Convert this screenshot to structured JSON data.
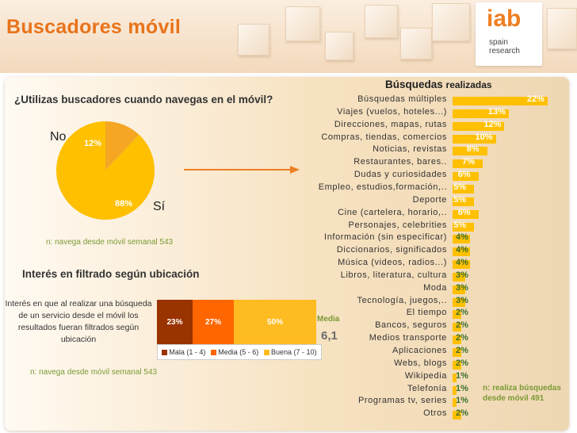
{
  "header": {
    "title": "Buscadores móvil",
    "logo": {
      "main": "iab",
      "sub1": "spain",
      "sub2": "research"
    }
  },
  "pie_section": {
    "question": "¿Utilizas buscadores cuando navegas en el móvil?",
    "label_no": "No",
    "label_si": "Sí",
    "note": "n: navega desde móvil semanal 543"
  },
  "interest_section": {
    "title": "Interés en filtrado según ubicación",
    "description": "Interés en que al realizar una búsqueda de un servicio desde el móvil  los resultados fueran filtrados según ubicación",
    "note": "n: navega desde móvil semanal 543",
    "media_label": "Media",
    "media_value": "6,1"
  },
  "bar_section": {
    "title_bold": "Búsquedas",
    "title_rest": "realizadas",
    "note": "n: realiza búsquedas desde móvil 491"
  },
  "colors": {
    "orange_title": "#e8731a",
    "gold": "#ffc000",
    "pie_small": "#f5a623",
    "pie_big": "#ffc000",
    "mala": "#993300",
    "media": "#ff6600",
    "buena": "#ffbb22",
    "note_green": "#7a9a35"
  },
  "chart_data": [
    {
      "type": "pie",
      "title": "¿Utilizas buscadores cuando navegas en el móvil?",
      "slices": [
        {
          "name": "No",
          "value": 12,
          "label": "12%"
        },
        {
          "name": "Sí",
          "value": 88,
          "label": "88%"
        }
      ]
    },
    {
      "type": "bar",
      "orientation": "horizontal-stacked",
      "title": "Interés en filtrado según ubicación",
      "series": [
        {
          "name": "Mala (1 - 4)",
          "value": 23,
          "label": "23%"
        },
        {
          "name": "Media (5 - 6)",
          "value": 27,
          "label": "27%"
        },
        {
          "name": "Buena (7 - 10)",
          "value": 50,
          "label": "50%"
        }
      ]
    },
    {
      "type": "bar",
      "orientation": "horizontal",
      "title": "Búsquedas realizadas",
      "categories": [
        "Búsquedas múltiples",
        "Viajes (vuelos, hoteles...)",
        "Direcciones, mapas, rutas",
        "Compras, tiendas, comercios",
        "Noticias, revistas",
        "Restaurantes, bares..",
        "Dudas y curiosidades",
        "Empleo, estudios,formación,..",
        "Deporte",
        "Cine (cartelera, horario,..",
        "Personajes, celebrities",
        "Información (sin especificar)",
        "Diccionarios, significados",
        "Música (videos, radios...)",
        "Libros, literatura, cultura",
        "Moda",
        "Tecnología, juegos,..",
        "El tiempo",
        "Bancos, seguros",
        "Medios transporte",
        "Aplicaciones",
        "Webs, blogs",
        "Wikipedia",
        "Telefonía",
        "Programas tv, series",
        "Otros"
      ],
      "values": [
        22,
        13,
        12,
        10,
        8,
        7,
        6,
        5,
        5,
        6,
        5,
        4,
        4,
        4,
        3,
        3,
        3,
        2,
        2,
        2,
        2,
        2,
        1,
        1,
        1,
        2
      ],
      "labels": [
        "22%",
        "13%",
        "12%",
        "10%",
        "8%",
        "7%",
        "6%",
        "5%",
        "5%",
        "6%",
        "5%",
        "4%",
        "4%",
        "4%",
        "3%",
        "3%",
        "3%",
        "2%",
        "2%",
        "2%",
        "2%",
        "2%",
        "1%",
        "1%",
        "1%",
        "2%"
      ]
    }
  ]
}
